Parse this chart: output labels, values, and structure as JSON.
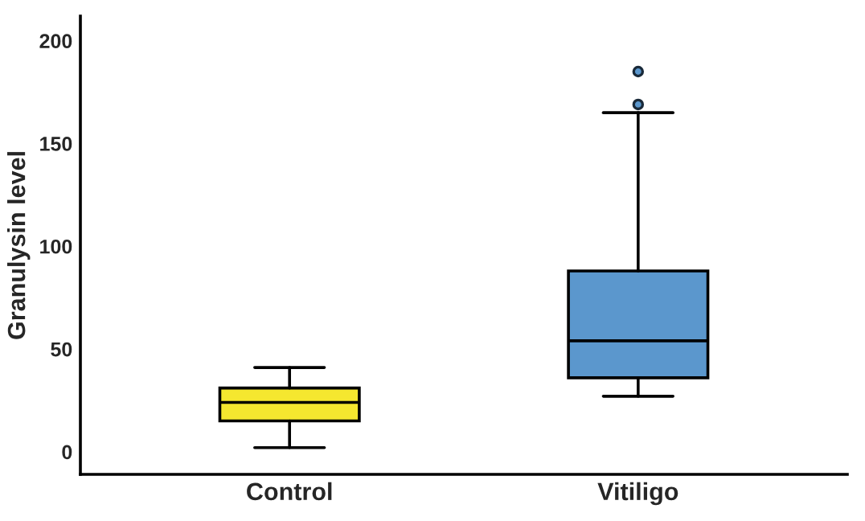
{
  "chart_data": {
    "type": "box",
    "ylabel": "Granulysin level",
    "categories": [
      "Control",
      "Vitiligo"
    ],
    "colors": [
      "#f5e72f",
      "#5b97cd"
    ],
    "boxes": [
      {
        "low": 2,
        "q1": 15,
        "median": 24,
        "q3": 31,
        "high": 41
      },
      {
        "low": 27,
        "q1": 36,
        "median": 54,
        "q3": 88,
        "high": 165,
        "outliers": [
          169,
          185
        ]
      }
    ],
    "ylim": [
      -11,
      212
    ],
    "yticks": [
      0,
      50,
      100,
      150,
      200
    ],
    "grid": false
  }
}
